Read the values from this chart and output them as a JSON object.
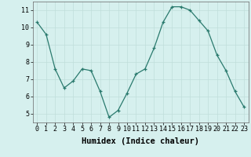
{
  "x": [
    0,
    1,
    2,
    3,
    4,
    5,
    6,
    7,
    8,
    9,
    10,
    11,
    12,
    13,
    14,
    15,
    16,
    17,
    18,
    19,
    20,
    21,
    22,
    23
  ],
  "y": [
    10.3,
    9.6,
    7.6,
    6.5,
    6.9,
    7.6,
    7.5,
    6.3,
    4.8,
    5.2,
    6.2,
    7.3,
    7.6,
    8.8,
    10.3,
    11.2,
    11.2,
    11.0,
    10.4,
    9.8,
    8.4,
    7.5,
    6.3,
    5.4
  ],
  "xlabel": "Humidex (Indice chaleur)",
  "ylim": [
    4.5,
    11.5
  ],
  "xlim": [
    -0.5,
    23.5
  ],
  "yticks": [
    5,
    6,
    7,
    8,
    9,
    10,
    11
  ],
  "xticks": [
    0,
    1,
    2,
    3,
    4,
    5,
    6,
    7,
    8,
    9,
    10,
    11,
    12,
    13,
    14,
    15,
    16,
    17,
    18,
    19,
    20,
    21,
    22,
    23
  ],
  "line_color": "#2a7a6e",
  "marker": "+",
  "bg_color": "#d6f0ee",
  "grid_color": "#c0deda",
  "tick_label_fontsize": 6,
  "xlabel_fontsize": 7.5
}
